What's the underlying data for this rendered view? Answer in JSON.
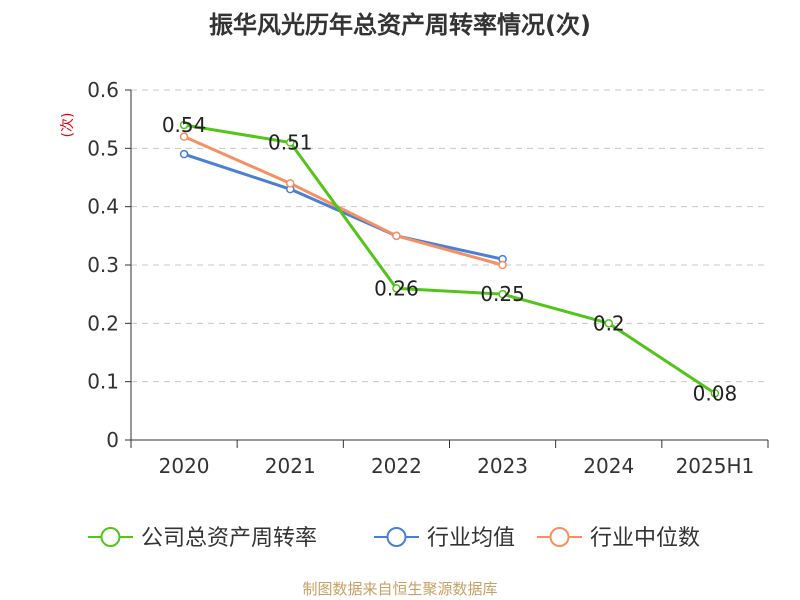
{
  "chart_data": {
    "type": "line",
    "title": "振华风光历年总资产周转率情况(次)",
    "ylabel": "(次)",
    "categories": [
      "2020",
      "2021",
      "2022",
      "2023",
      "2024",
      "2025H1"
    ],
    "yticks": [
      "0",
      "0.1",
      "0.2",
      "0.3",
      "0.4",
      "0.5",
      "0.6"
    ],
    "ylim": [
      0,
      0.6
    ],
    "grid": true,
    "legend_position": "bottom",
    "series": [
      {
        "name": "公司总资产周转率",
        "color": "#52c41a",
        "values": [
          0.54,
          0.51,
          0.26,
          0.25,
          0.2,
          0.08
        ],
        "labels": [
          "0.54",
          "0.51",
          "0.26",
          "0.25",
          "0.2",
          "0.08"
        ]
      },
      {
        "name": "行业均值",
        "color": "#4a7fd6",
        "values": [
          0.49,
          0.43,
          0.35,
          0.31,
          null,
          null
        ]
      },
      {
        "name": "行业中位数",
        "color": "#f59062",
        "values": [
          0.52,
          0.44,
          0.35,
          0.3,
          null,
          null
        ]
      }
    ],
    "source": "制图数据来自恒生聚源数据库"
  }
}
